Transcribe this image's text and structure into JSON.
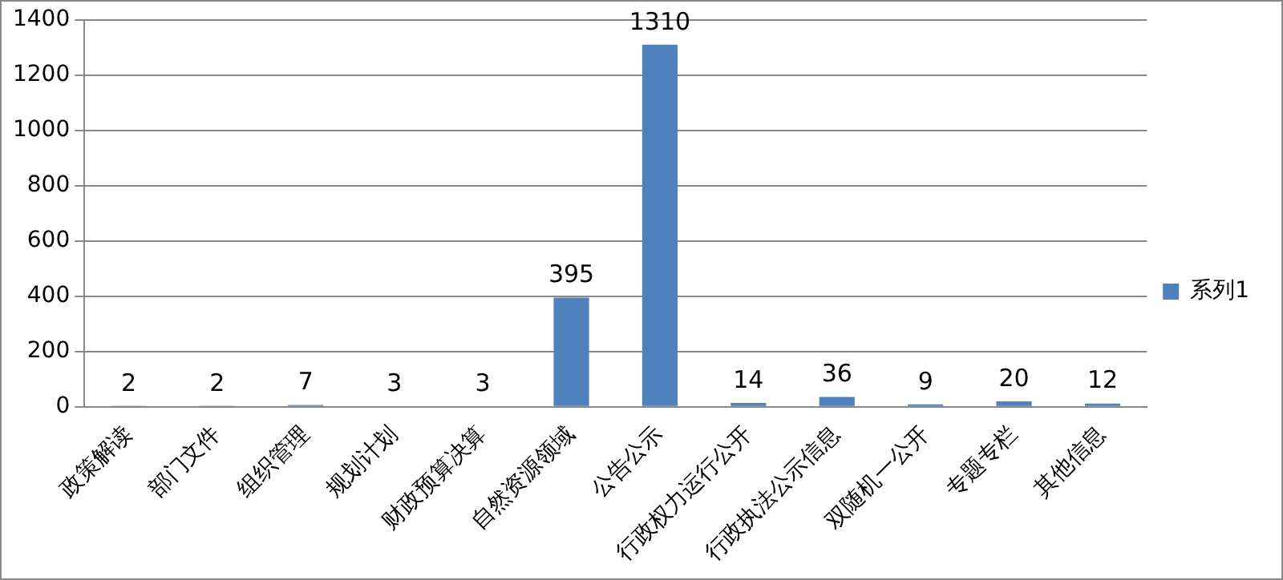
{
  "chart_data": {
    "type": "bar",
    "categories": [
      "政策解读",
      "部门文件",
      "组织管理",
      "规划计划",
      "财政预算决算",
      "自然资源领域",
      "公告公示",
      "行政权力运行公开",
      "行政执法公示信息",
      "双随机一公开",
      "专题专栏",
      "其他信息"
    ],
    "series": [
      {
        "name": "系列1",
        "color": "#4f81bd",
        "values": [
          2,
          2,
          7,
          3,
          3,
          395,
          1310,
          14,
          36,
          9,
          20,
          12
        ]
      }
    ],
    "ylim": [
      0,
      1400
    ],
    "yticks": [
      0,
      200,
      400,
      600,
      800,
      1000,
      1200,
      1400
    ],
    "grid": "y",
    "legend": "right",
    "data_labels": true
  }
}
